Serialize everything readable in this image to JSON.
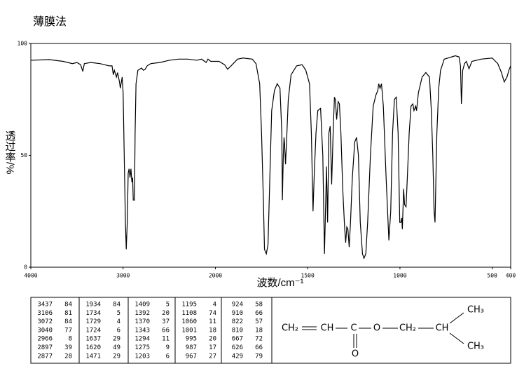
{
  "chart_data": {
    "type": "line",
    "title": "薄膜法",
    "x_label": "波数/cm⁻¹",
    "y_label": "透过率/%",
    "xlim": [
      4000,
      400
    ],
    "xticks": [
      4000,
      3000,
      2000,
      1500,
      1000,
      500,
      400
    ],
    "ylim": [
      0,
      100
    ],
    "yticks": [
      0,
      50,
      100
    ],
    "color": "#000000",
    "x": [
      4000,
      3800,
      3650,
      3550,
      3500,
      3460,
      3437,
      3420,
      3350,
      3250,
      3150,
      3120,
      3106,
      3095,
      3072,
      3060,
      3040,
      3030,
      3010,
      3000,
      2990,
      2975,
      2966,
      2955,
      2945,
      2935,
      2925,
      2915,
      2905,
      2897,
      2890,
      2877,
      2870,
      2860,
      2840,
      2800,
      2780,
      2760,
      2740,
      2700,
      2600,
      2500,
      2400,
      2300,
      2200,
      2150,
      2100,
      2080,
      2050,
      2000,
      1980,
      1950,
      1934,
      1915,
      1880,
      1850,
      1800,
      1780,
      1760,
      1750,
      1740,
      1734,
      1724,
      1715,
      1705,
      1695,
      1680,
      1665,
      1650,
      1640,
      1637,
      1632,
      1628,
      1625,
      1620,
      1615,
      1605,
      1590,
      1560,
      1530,
      1510,
      1490,
      1480,
      1471,
      1465,
      1455,
      1445,
      1430,
      1418,
      1409,
      1402,
      1398,
      1392,
      1385,
      1378,
      1370,
      1362,
      1355,
      1350,
      1343,
      1335,
      1328,
      1320,
      1310,
      1300,
      1294,
      1288,
      1282,
      1275,
      1268,
      1258,
      1245,
      1235,
      1225,
      1215,
      1203,
      1195,
      1185,
      1175,
      1160,
      1145,
      1130,
      1120,
      1115,
      1108,
      1100,
      1090,
      1075,
      1060,
      1050,
      1040,
      1030,
      1020,
      1010,
      1001,
      995,
      990,
      987,
      980,
      975,
      967,
      960,
      950,
      940,
      930,
      924,
      915,
      910,
      900,
      880,
      860,
      840,
      830,
      822,
      815,
      810,
      800,
      790,
      780,
      760,
      700,
      680,
      672,
      667,
      660,
      650,
      640,
      626,
      610,
      560,
      500,
      470,
      450,
      435,
      420,
      410,
      400
    ],
    "values": [
      92.5,
      92.8,
      92,
      91,
      91.5,
      90.5,
      87.5,
      91,
      91.5,
      91,
      90,
      90,
      86,
      88,
      85,
      87,
      83,
      80,
      85,
      78,
      55,
      20,
      8,
      20,
      42,
      44,
      40,
      44,
      38,
      40,
      30,
      30,
      60,
      82,
      88,
      89,
      88,
      88.5,
      90,
      91,
      91.5,
      92.5,
      93,
      93,
      92.5,
      93,
      91.5,
      93,
      92,
      92,
      92,
      90.5,
      88.5,
      90,
      93,
      93.5,
      93,
      91,
      82,
      60,
      30,
      8,
      6,
      10,
      40,
      70,
      79,
      82,
      80,
      60,
      30,
      50,
      58,
      55,
      46,
      55,
      75,
      86,
      90,
      90.5,
      88,
      82,
      60,
      25,
      40,
      60,
      70,
      71,
      50,
      6,
      30,
      45,
      20,
      60,
      63,
      37,
      60,
      76,
      75,
      66,
      74,
      73,
      60,
      35,
      18,
      11,
      18,
      17,
      9,
      20,
      40,
      56,
      58,
      50,
      20,
      6,
      4,
      6,
      20,
      50,
      72,
      77,
      79,
      82,
      80,
      82,
      72,
      40,
      12,
      25,
      60,
      75,
      76,
      60,
      20,
      20,
      22,
      17,
      35,
      28,
      27,
      40,
      60,
      72,
      73,
      70,
      72,
      70,
      78,
      85,
      87,
      85,
      70,
      50,
      25,
      20,
      60,
      80,
      88,
      93,
      94.5,
      94,
      90,
      73,
      88,
      91,
      92,
      88.7,
      92,
      93,
      93.5,
      91,
      87,
      82.8,
      85,
      88,
      90
    ]
  },
  "peak_table": [
    [
      [
        3437,
        84
      ],
      [
        3106,
        81
      ],
      [
        3072,
        84
      ],
      [
        3040,
        77
      ],
      [
        2966,
        8
      ],
      [
        2897,
        39
      ],
      [
        2877,
        28
      ]
    ],
    [
      [
        1934,
        84
      ],
      [
        1734,
        5
      ],
      [
        1729,
        4
      ],
      [
        1724,
        6
      ],
      [
        1637,
        29
      ],
      [
        1620,
        49
      ],
      [
        1471,
        29
      ]
    ],
    [
      [
        1409,
        5
      ],
      [
        1392,
        20
      ],
      [
        1370,
        37
      ],
      [
        1343,
        66
      ],
      [
        1294,
        11
      ],
      [
        1275,
        9
      ],
      [
        1203,
        6
      ]
    ],
    [
      [
        1195,
        4
      ],
      [
        1108,
        74
      ],
      [
        1060,
        11
      ],
      [
        1001,
        18
      ],
      [
        995,
        20
      ],
      [
        987,
        17
      ],
      [
        967,
        27
      ]
    ],
    [
      [
        924,
        58
      ],
      [
        910,
        66
      ],
      [
        822,
        57
      ],
      [
        810,
        18
      ],
      [
        667,
        72
      ],
      [
        626,
        66
      ],
      [
        429,
        79
      ]
    ]
  ],
  "structure": {
    "atoms": [
      "CH₂",
      "CH",
      "C",
      "O",
      "CH₂",
      "CH",
      "CH₃",
      "CH₃",
      "O"
    ]
  }
}
